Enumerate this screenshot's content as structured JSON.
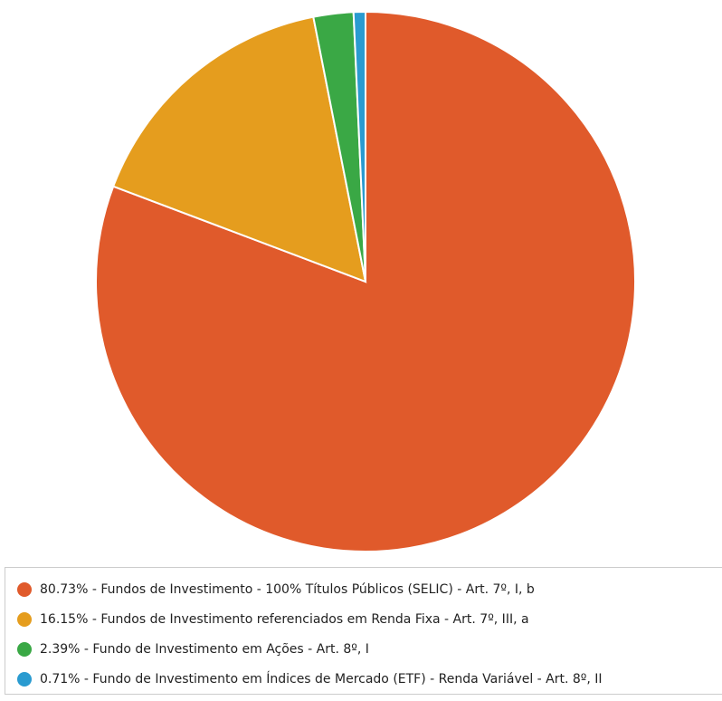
{
  "chart_data": {
    "type": "pie",
    "categories": [
      "80.73% - Fundos de Investimento - 100% Títulos Públicos (SELIC) - Art. 7º, I, b",
      "16.15% - Fundos de Investimento referenciados em Renda Fixa - Art. 7º, III, a",
      "2.39% - Fundo de Investimento em Ações - Art. 8º, I",
      "0.71% - Fundo de Investimento em Índices de Mercado (ETF) - Renda Variável - Art. 8º, II"
    ],
    "values": [
      80.73,
      16.15,
      2.39,
      0.71
    ],
    "colors": [
      "#e05a2b",
      "#e59d1e",
      "#3aa845",
      "#2a9bd0"
    ]
  }
}
